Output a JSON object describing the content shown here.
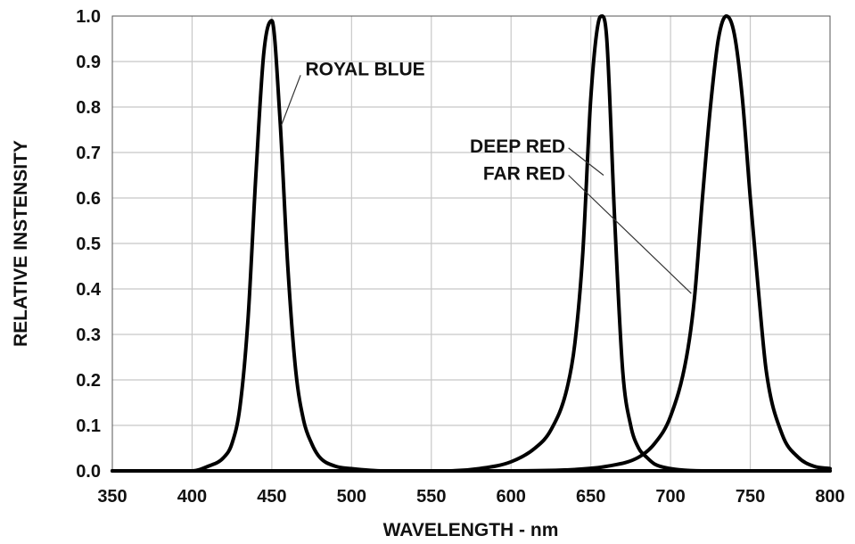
{
  "chart_data": {
    "type": "line",
    "title": "",
    "xlabel": "WAVELENGTH - nm",
    "ylabel": "RELATIVE INSTENSITY",
    "xlim": [
      350,
      800
    ],
    "ylim": [
      0.0,
      1.0
    ],
    "grid": true,
    "x_ticks": [
      350,
      400,
      450,
      500,
      550,
      600,
      650,
      700,
      750,
      800
    ],
    "y_ticks": [
      "0.0",
      "0.1",
      "0.2",
      "0.3",
      "0.4",
      "0.5",
      "0.6",
      "0.7",
      "0.8",
      "0.9",
      "1.0"
    ],
    "series": [
      {
        "name": "ROYAL BLUE",
        "x": [
          350,
          400,
          410,
          420,
          425,
          430,
          435,
          440,
          445,
          450,
          455,
          460,
          465,
          470,
          475,
          480,
          490,
          500,
          520,
          550,
          600,
          650,
          700,
          800
        ],
        "y": [
          0.0,
          0.0,
          0.01,
          0.03,
          0.06,
          0.14,
          0.33,
          0.65,
          0.92,
          0.99,
          0.78,
          0.45,
          0.22,
          0.11,
          0.06,
          0.03,
          0.01,
          0.005,
          0.0,
          0.0,
          0.0,
          0.0,
          0.0,
          0.0
        ]
      },
      {
        "name": "DEEP RED",
        "x": [
          350,
          500,
          560,
          580,
          600,
          615,
          625,
          635,
          640,
          645,
          650,
          655,
          657,
          660,
          665,
          670,
          675,
          680,
          685,
          690,
          700,
          720,
          800
        ],
        "y": [
          0.0,
          0.0,
          0.0,
          0.005,
          0.02,
          0.05,
          0.09,
          0.18,
          0.28,
          0.48,
          0.82,
          0.99,
          1.0,
          0.95,
          0.55,
          0.22,
          0.1,
          0.05,
          0.03,
          0.015,
          0.005,
          0.0,
          0.0
        ]
      },
      {
        "name": "FAR RED",
        "x": [
          350,
          550,
          600,
          640,
          660,
          680,
          690,
          700,
          710,
          715,
          720,
          725,
          730,
          735,
          740,
          745,
          750,
          755,
          760,
          770,
          780,
          790,
          800
        ],
        "y": [
          0.0,
          0.0,
          0.0,
          0.003,
          0.01,
          0.03,
          0.06,
          0.12,
          0.25,
          0.38,
          0.6,
          0.8,
          0.95,
          1.0,
          0.96,
          0.82,
          0.6,
          0.4,
          0.22,
          0.08,
          0.03,
          0.01,
          0.005
        ]
      }
    ],
    "annotations": [
      {
        "text": "ROYAL BLUE",
        "series": "ROYAL BLUE",
        "text_anchor": "start",
        "label_pos": [
          471,
          0.87
        ],
        "line_from": [
          468,
          0.87
        ],
        "line_to": [
          456,
          0.76
        ]
      },
      {
        "text": "DEEP RED",
        "series": "DEEP RED",
        "text_anchor": "end",
        "label_pos": [
          634,
          0.7
        ],
        "line_from": [
          636,
          0.71
        ],
        "line_to": [
          658,
          0.65
        ]
      },
      {
        "text": "FAR RED",
        "series": "FAR RED",
        "text_anchor": "end",
        "label_pos": [
          634,
          0.64
        ],
        "line_from": [
          636,
          0.65
        ],
        "line_to": [
          713,
          0.39
        ]
      }
    ]
  }
}
